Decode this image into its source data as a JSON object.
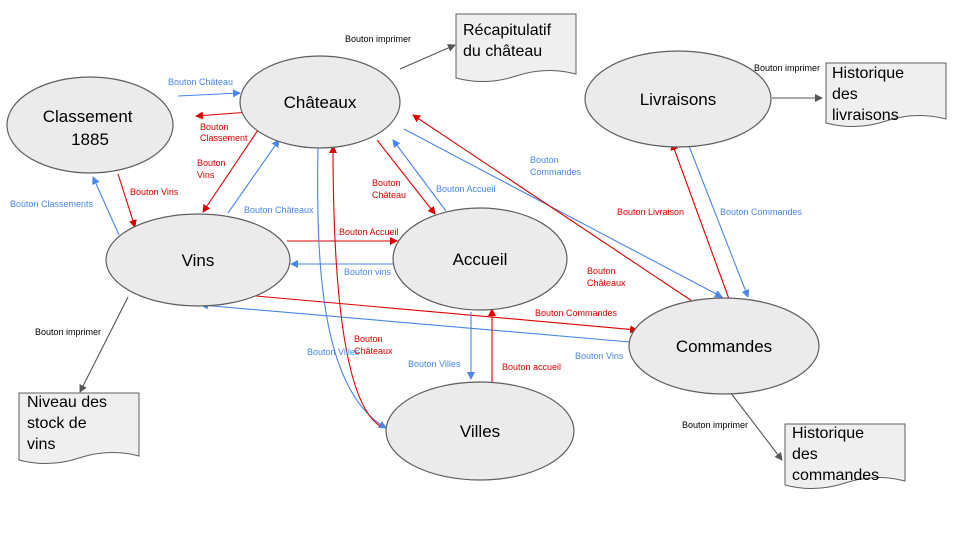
{
  "nodes": {
    "chateaux": "Châteaux",
    "classement": [
      "Classement",
      "1885"
    ],
    "vins": "Vins",
    "accueil": "Accueil",
    "villes": "Villes",
    "commandes": "Commandes",
    "livraisons": "Livraisons"
  },
  "documents": {
    "recap": [
      "Récapitulatif",
      "du château"
    ],
    "historique_livraisons": [
      "Historique",
      "des",
      "livraisons"
    ],
    "niveau_stock": [
      "Niveau des",
      "stock de",
      "vins"
    ],
    "historique_commandes": [
      "Historique",
      "des",
      "commandes"
    ]
  },
  "edge_labels": {
    "chateaux_recap": "Bouton imprimer",
    "livraisons_historique": "Bouton imprimer",
    "vins_stock": "Bouton imprimer",
    "commandes_historique": "Bouton imprimer",
    "classement_to_chateaux": "Bouton Château",
    "chateaux_to_classement": [
      "Bouton",
      "Classement"
    ],
    "chateaux_to_vins": [
      "Bouton",
      "Vins"
    ],
    "classement_to_vins": "Bouton Vins",
    "vins_to_classement": "Bouton Classements",
    "vins_to_chateaux": "Bouton Châteaux",
    "chateaux_to_accueil": [
      "Bouton",
      "Château"
    ],
    "accueil_to_chateaux": "Bouton Accueil",
    "chateaux_to_commandes": [
      "Bouton",
      "Commandes"
    ],
    "commandes_to_chateaux": [
      "Bouton",
      "Châteaux"
    ],
    "vins_to_accueil": "Bouton Accueil",
    "accueil_to_vins": "Bouton vins",
    "vins_to_commandes": "Bouton Commandes",
    "commandes_to_vins": "Bouton Vins",
    "chateaux_to_villes": "Bouton Villes",
    "villes_to_chateaux": [
      "Bouton",
      "Châteaux"
    ],
    "accueil_to_villes": "Bouton Villes",
    "villes_to_accueil": "Bouton accueil",
    "commandes_to_livraisons": "Bouton Livraison",
    "livraisons_to_commandes": "Bouton Commandes"
  },
  "colors": {
    "blue": "#4a86e8",
    "red": "#e00000",
    "node_fill": "#ebebeb",
    "doc_fill": "#efefef"
  }
}
